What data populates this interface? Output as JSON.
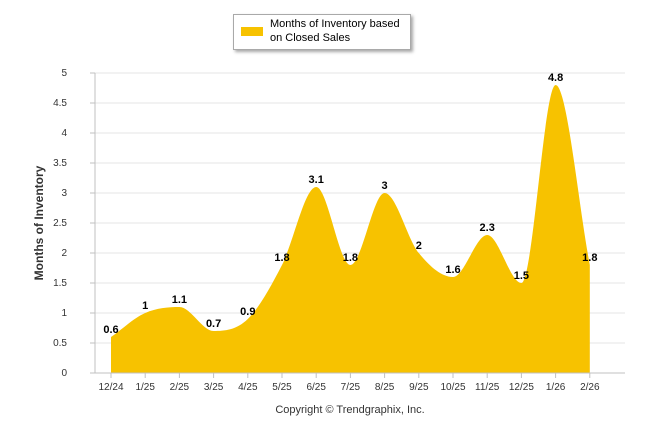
{
  "chart_data": {
    "type": "area",
    "title": "",
    "xlabel": "",
    "ylabel": "Months of Inventory",
    "ylim": [
      0,
      5
    ],
    "yticks": [
      "0",
      "0.5",
      "1",
      "1.5",
      "2",
      "2.5",
      "3",
      "3.5",
      "4",
      "4.5",
      "5"
    ],
    "categories": [
      "12/24",
      "1/25",
      "2/25",
      "3/25",
      "4/25",
      "5/25",
      "6/25",
      "7/25",
      "8/25",
      "9/25",
      "10/25",
      "11/25",
      "12/25",
      "1/26",
      "2/26"
    ],
    "series": [
      {
        "name": "Months of Inventory based on Closed Sales",
        "values": [
          0.6,
          1,
          1.1,
          0.7,
          0.9,
          1.8,
          3.1,
          1.8,
          3,
          2,
          1.6,
          2.3,
          1.5,
          4.8,
          1.8
        ],
        "labels": [
          "0.6",
          "1",
          "1.1",
          "0.7",
          "0.9",
          "1.8",
          "3.1",
          "1.8",
          "3",
          "2",
          "1.6",
          "2.3",
          "1.5",
          "4.8",
          "1.8"
        ]
      }
    ],
    "legend": {
      "text": "Months of Inventory based on Closed Sales",
      "position": "top-center"
    },
    "colors": {
      "fill": "#f7c200",
      "grid": "#e6e6e6",
      "axis": "#c0c0c0"
    },
    "grid": true
  },
  "caption": "Copyright © Trendgraphix, Inc."
}
